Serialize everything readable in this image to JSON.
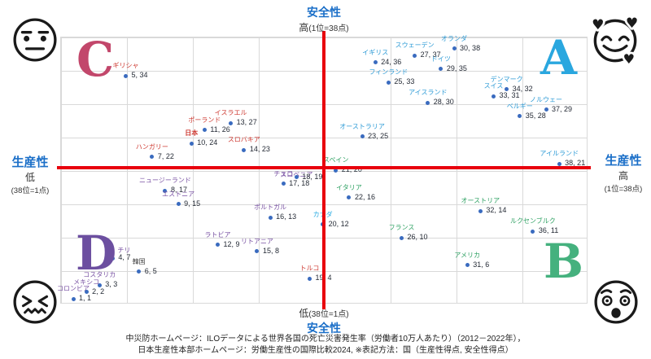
{
  "axes": {
    "top": {
      "title": "安全性",
      "sub_big": "高",
      "sub_small": "(1位=38点)"
    },
    "bottom": {
      "sub_big": "低",
      "sub_small": "(38位=1点)",
      "title": "安全性"
    },
    "left": {
      "title": "生産性",
      "sub_big": "低",
      "sub_small": "(38位=1点)"
    },
    "right": {
      "title": "生産性",
      "sub_big": "高",
      "sub_small": "(1位=38点)"
    }
  },
  "quadrants": {
    "C": {
      "letter": "C",
      "color": "#C2476B"
    },
    "A": {
      "letter": "A",
      "color": "#2AA7DF"
    },
    "D": {
      "letter": "D",
      "color": "#6C4FA0"
    },
    "B": {
      "letter": "B",
      "color": "#45B17E"
    }
  },
  "emojis": {
    "top_left": "neutral-face",
    "top_right": "smiling-face-with-hearts",
    "bottom_left": "confounded-face",
    "bottom_right": "dizzy-face"
  },
  "palette": {
    "dot": "#3A6BBF",
    "value_text": "#242A35",
    "axis_red": "#E8000D",
    "grid": "#D9D9D9",
    "title_blue": "#1B6FC8",
    "label_C": "#CE3B33",
    "label_A": "#2E9BD6",
    "label_D": "#7952A3",
    "label_B": "#2FA163",
    "label_cyan": "#29ABE2",
    "label_dark": "#404040"
  },
  "chart_data": {
    "type": "scatter",
    "title": "",
    "xlabel": "生産性(得点) 1位=38点, 38位=1点",
    "ylabel": "安全性(得点) 1位=38点, 38位=1点",
    "xlim": [
      0,
      39
    ],
    "ylim": [
      0,
      39
    ],
    "grid": true,
    "legend_position": "none",
    "points": [
      {
        "name": "ギリシャ",
        "x": 5,
        "y": 34,
        "group": "C"
      },
      {
        "name": "イスラエル",
        "x": 13,
        "y": 27,
        "group": "C"
      },
      {
        "name": "ポーランド",
        "x": 11,
        "y": 26,
        "group": "C"
      },
      {
        "name": "日本",
        "x": 10,
        "y": 24,
        "group": "C",
        "bold": true
      },
      {
        "name": "スロバキア",
        "x": 14,
        "y": 23,
        "group": "C"
      },
      {
        "name": "ハンガリー",
        "x": 7,
        "y": 22,
        "group": "C"
      },
      {
        "name": "オランダ",
        "x": 30,
        "y": 38,
        "group": "A"
      },
      {
        "name": "スウェーデン",
        "x": 27,
        "y": 37,
        "group": "A"
      },
      {
        "name": "イギリス",
        "x": 24,
        "y": 36,
        "group": "A"
      },
      {
        "name": "ドイツ",
        "x": 29,
        "y": 35,
        "group": "A"
      },
      {
        "name": "フィンランド",
        "x": 25,
        "y": 33,
        "group": "A"
      },
      {
        "name": "デンマーク",
        "x": 34,
        "y": 32,
        "group": "A"
      },
      {
        "name": "スイス",
        "x": 33,
        "y": 31,
        "group": "A"
      },
      {
        "name": "アイスランド",
        "x": 28,
        "y": 30,
        "group": "A"
      },
      {
        "name": "ノルウェー",
        "x": 37,
        "y": 29,
        "group": "A"
      },
      {
        "name": "ベルギー",
        "x": 35,
        "y": 28,
        "group": "A"
      },
      {
        "name": "オーストラリア",
        "x": 23,
        "y": 25,
        "group": "A"
      },
      {
        "name": "アイルランド",
        "x": 38,
        "y": 21,
        "group": "A"
      },
      {
        "name": "スペイン",
        "x": 21,
        "y": 20,
        "group": "B"
      },
      {
        "name": "イタリア",
        "x": 22,
        "y": 16,
        "group": "B"
      },
      {
        "name": "オーストリア",
        "x": 32,
        "y": 14,
        "group": "B"
      },
      {
        "name": "カナダ",
        "x": 20,
        "y": 12,
        "group": "cyan"
      },
      {
        "name": "ルクセンブルク",
        "x": 36,
        "y": 11,
        "group": "B"
      },
      {
        "name": "フランス",
        "x": 26,
        "y": 10,
        "group": "B"
      },
      {
        "name": "アメリカ",
        "x": 31,
        "y": 6,
        "group": "B"
      },
      {
        "name": "スロベニア",
        "x": 18,
        "y": 19,
        "group": "D",
        "ldy": 9
      },
      {
        "name": "チェコ",
        "x": 17,
        "y": 18,
        "group": "D"
      },
      {
        "name": "ニュージーランド",
        "x": 8,
        "y": 17,
        "group": "D"
      },
      {
        "name": "エストニア",
        "x": 9,
        "y": 15,
        "group": "D"
      },
      {
        "name": "ポルトガル",
        "x": 16,
        "y": 13,
        "group": "D"
      },
      {
        "name": "ラトビア",
        "x": 12,
        "y": 9,
        "group": "D"
      },
      {
        "name": "リトアニア",
        "x": 15,
        "y": 8,
        "group": "D"
      },
      {
        "name": "チリ",
        "x": 4,
        "y": 7,
        "group": "D",
        "ldx": 14,
        "ldy": 3
      },
      {
        "name": "韓国",
        "x": 6,
        "y": 5,
        "group": "dark"
      },
      {
        "name": "トルコ",
        "x": 19,
        "y": 4,
        "group": "C"
      },
      {
        "name": "コスタリカ",
        "x": 3,
        "y": 3,
        "group": "D"
      },
      {
        "name": "メキシコ",
        "x": 2,
        "y": 2,
        "group": "D"
      },
      {
        "name": "コロンビア",
        "x": 1,
        "y": 1,
        "group": "D"
      }
    ]
  },
  "caption": {
    "line1": "中災防ホームページ：ILOデータによる世界各国の死亡災害発生率（労働者10万人あたり）（2012－2022年），",
    "line2": "日本生産性本部ホームページ：労働生産性の国際比較2024, ※表記方法：国（生産性得点, 安全性得点）"
  }
}
